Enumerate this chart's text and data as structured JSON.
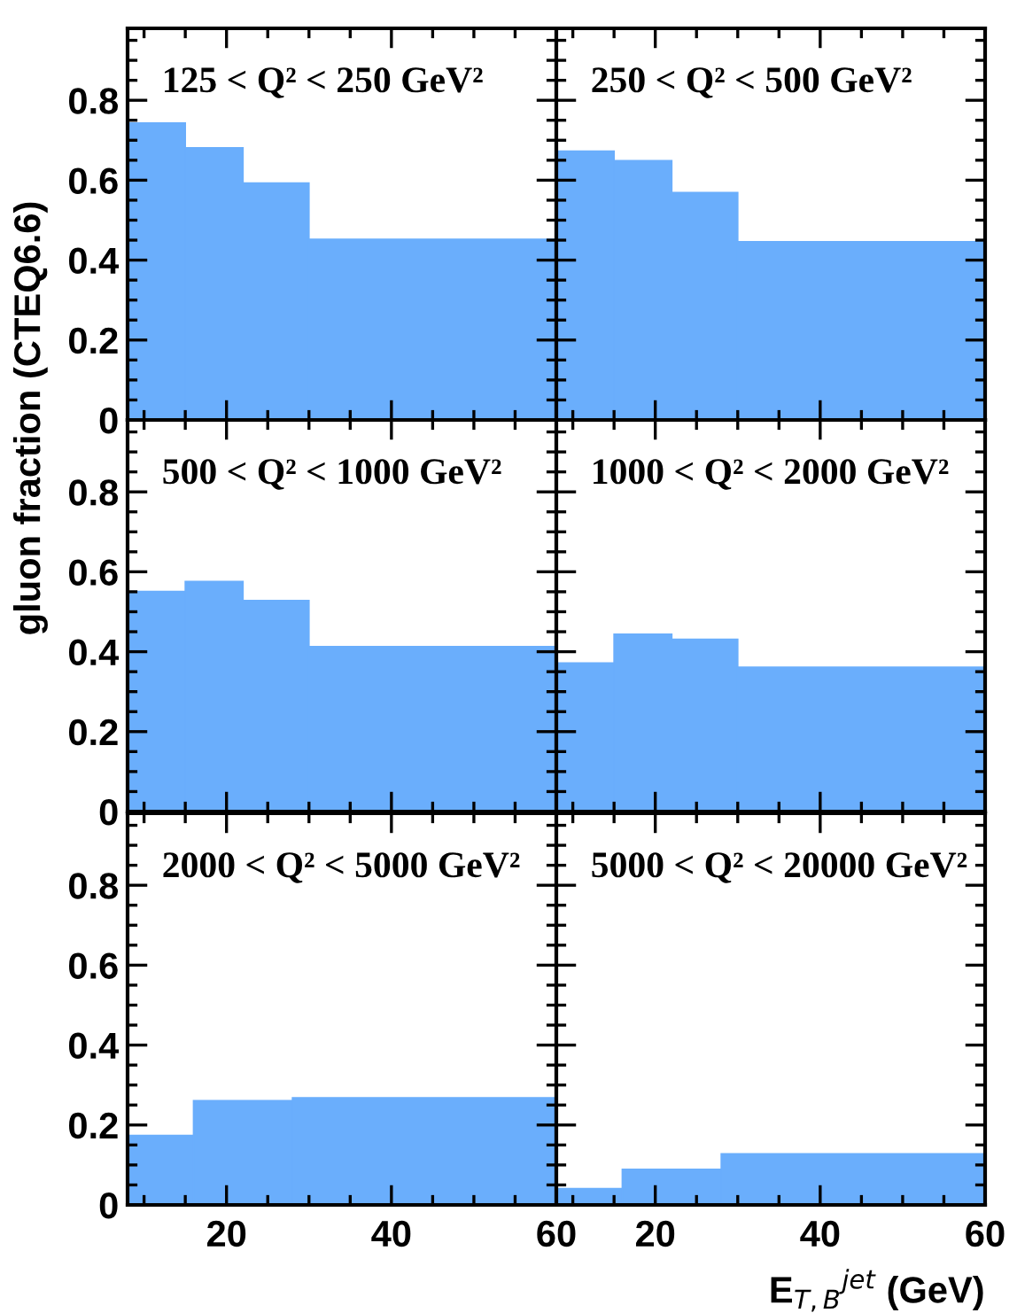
{
  "chart_data": [
    {
      "type": "histogram",
      "title": "125 < Q² < 250 GeV²",
      "ylabel": "gluon fraction (CTEQ6.6)",
      "bins": [
        8,
        15,
        22,
        30,
        60
      ],
      "values": [
        0.743,
        0.681,
        0.593,
        0.452
      ],
      "color": "#6aaefc",
      "xlim": [
        8,
        60
      ],
      "xticks": [
        20,
        40,
        60
      ],
      "ylim": [
        0,
        0.98
      ],
      "yticks": [
        0,
        0.2,
        0.4,
        0.6,
        0.8
      ],
      "tick_labels": "y",
      "grid": false
    },
    {
      "type": "histogram",
      "title": "250 < Q² < 500 GeV²",
      "bins": [
        8,
        15,
        22,
        30,
        60
      ],
      "values": [
        0.673,
        0.649,
        0.569,
        0.446
      ],
      "color": "#6aaefc",
      "xlim": [
        8,
        60
      ],
      "xticks": [
        20,
        40,
        60
      ],
      "ylim": [
        0,
        0.98
      ],
      "yticks": [
        0,
        0.2,
        0.4,
        0.6,
        0.8
      ],
      "tick_labels": false,
      "grid": false
    },
    {
      "type": "histogram",
      "title": "500 < Q² < 1000 GeV²",
      "bins": [
        8,
        15,
        22,
        30,
        60
      ],
      "values": [
        0.551,
        0.576,
        0.528,
        0.413
      ],
      "color": "#6aaefc",
      "xlim": [
        8,
        60
      ],
      "xticks": [
        20,
        40,
        60
      ],
      "ylim": [
        0,
        0.98
      ],
      "yticks": [
        0,
        0.2,
        0.4,
        0.6,
        0.8
      ],
      "tick_labels": "y",
      "grid": false
    },
    {
      "type": "histogram",
      "title": "1000 < Q² < 2000 GeV²",
      "bins": [
        8,
        15,
        22,
        30,
        60
      ],
      "values": [
        0.372,
        0.444,
        0.431,
        0.361
      ],
      "color": "#6aaefc",
      "xlim": [
        8,
        60
      ],
      "xticks": [
        20,
        40,
        60
      ],
      "ylim": [
        0,
        0.98
      ],
      "yticks": [
        0,
        0.2,
        0.4,
        0.6,
        0.8
      ],
      "tick_labels": false,
      "grid": false
    },
    {
      "type": "histogram",
      "title": "2000 < Q² < 5000 GeV²",
      "bins": [
        8,
        16,
        28,
        60
      ],
      "values": [
        0.174,
        0.261,
        0.268
      ],
      "color": "#6aaefc",
      "xlim": [
        8,
        60
      ],
      "xticks": [
        20,
        40,
        60
      ],
      "ylim": [
        0,
        0.98
      ],
      "yticks": [
        0,
        0.2,
        0.4,
        0.6,
        0.8
      ],
      "grid": false
    },
    {
      "type": "histogram",
      "title": "5000 < Q² < 20000 GeV²",
      "xlabel": "E$_{T,B}$$^{jet}$ (GeV)",
      "bins": [
        8,
        16,
        28,
        60
      ],
      "values": [
        0.041,
        0.089,
        0.128
      ],
      "color": "#6aaefc",
      "xlim": [
        8,
        60
      ],
      "xticks": [
        20,
        40,
        60
      ],
      "ylim": [
        0,
        0.98
      ],
      "yticks": [
        0,
        0.2,
        0.4,
        0.6,
        0.8
      ],
      "tick_labels": "x",
      "grid": false
    }
  ]
}
